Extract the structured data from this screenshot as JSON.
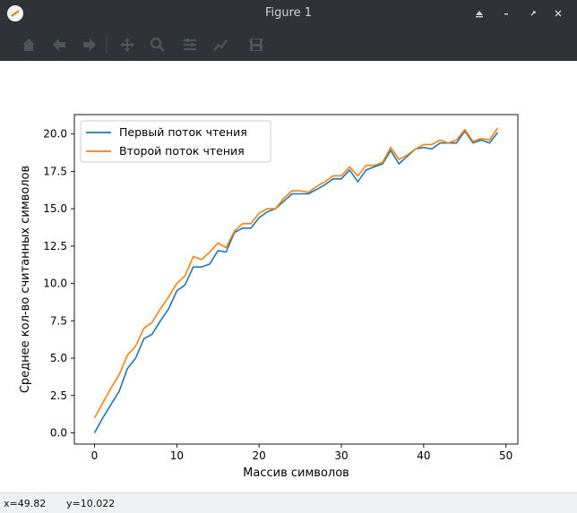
{
  "window": {
    "title": "Figure 1",
    "buttons": [
      "restore-up",
      "minimize",
      "maximize",
      "close"
    ]
  },
  "toolbar": {
    "tools": [
      "home-icon",
      "back-arrow-icon",
      "forward-arrow-icon",
      "pan-icon",
      "zoom-icon",
      "subplots-icon",
      "edit-axes-icon",
      "save-icon"
    ]
  },
  "status": {
    "x_text": "x=49.82",
    "y_text": "y=10.022"
  },
  "chart_data": {
    "type": "line",
    "title": "",
    "xlabel": "Массив символов",
    "ylabel": "Среднее кол-во считанных символов",
    "xlim": [
      -2.45,
      51.45
    ],
    "ylim": [
      -0.75,
      21.3
    ],
    "xticks": [
      0,
      10,
      20,
      30,
      40,
      50
    ],
    "yticks": [
      0.0,
      2.5,
      5.0,
      7.5,
      10.0,
      12.5,
      15.0,
      17.5,
      20.0
    ],
    "ytick_labels": [
      "0.0",
      "2.5",
      "5.0",
      "7.5",
      "10.0",
      "12.5",
      "15.0",
      "17.5",
      "20.0"
    ],
    "grid": false,
    "legend": "top-left",
    "x": [
      0,
      1,
      2,
      3,
      4,
      5,
      6,
      7,
      8,
      9,
      10,
      11,
      12,
      13,
      14,
      15,
      16,
      17,
      18,
      19,
      20,
      21,
      22,
      23,
      24,
      25,
      26,
      27,
      28,
      29,
      30,
      31,
      32,
      33,
      34,
      35,
      36,
      37,
      38,
      39,
      40,
      41,
      42,
      43,
      44,
      45,
      46,
      47,
      48,
      49
    ],
    "series": [
      {
        "name": "Первый поток чтения",
        "color": "#1f77b4",
        "values": [
          0.0,
          1.0,
          1.9,
          2.8,
          4.3,
          5.0,
          6.3,
          6.6,
          7.5,
          8.3,
          9.5,
          9.9,
          11.1,
          11.1,
          11.3,
          12.2,
          12.1,
          13.4,
          13.7,
          13.7,
          14.4,
          14.8,
          15.0,
          15.5,
          16.0,
          16.0,
          16.0,
          16.3,
          16.6,
          17.0,
          17.0,
          17.6,
          16.8,
          17.6,
          17.8,
          18.0,
          18.9,
          18.0,
          18.5,
          19.0,
          19.1,
          19.0,
          19.4,
          19.4,
          19.4,
          20.2,
          19.4,
          19.6,
          19.4,
          20.1
        ]
      },
      {
        "name": "Второй поток чтения",
        "color": "#ff7f0e",
        "values": [
          1.0,
          2.0,
          3.0,
          3.9,
          5.2,
          5.8,
          7.0,
          7.4,
          8.3,
          9.1,
          10.0,
          10.5,
          11.8,
          11.6,
          12.1,
          12.7,
          12.4,
          13.5,
          14.0,
          14.0,
          14.7,
          15.0,
          15.0,
          15.7,
          16.2,
          16.2,
          16.1,
          16.5,
          16.8,
          17.2,
          17.2,
          17.8,
          17.2,
          17.9,
          17.9,
          18.1,
          19.1,
          18.3,
          18.6,
          19.0,
          19.3,
          19.3,
          19.6,
          19.4,
          19.6,
          20.3,
          19.5,
          19.7,
          19.6,
          20.4
        ]
      }
    ]
  }
}
